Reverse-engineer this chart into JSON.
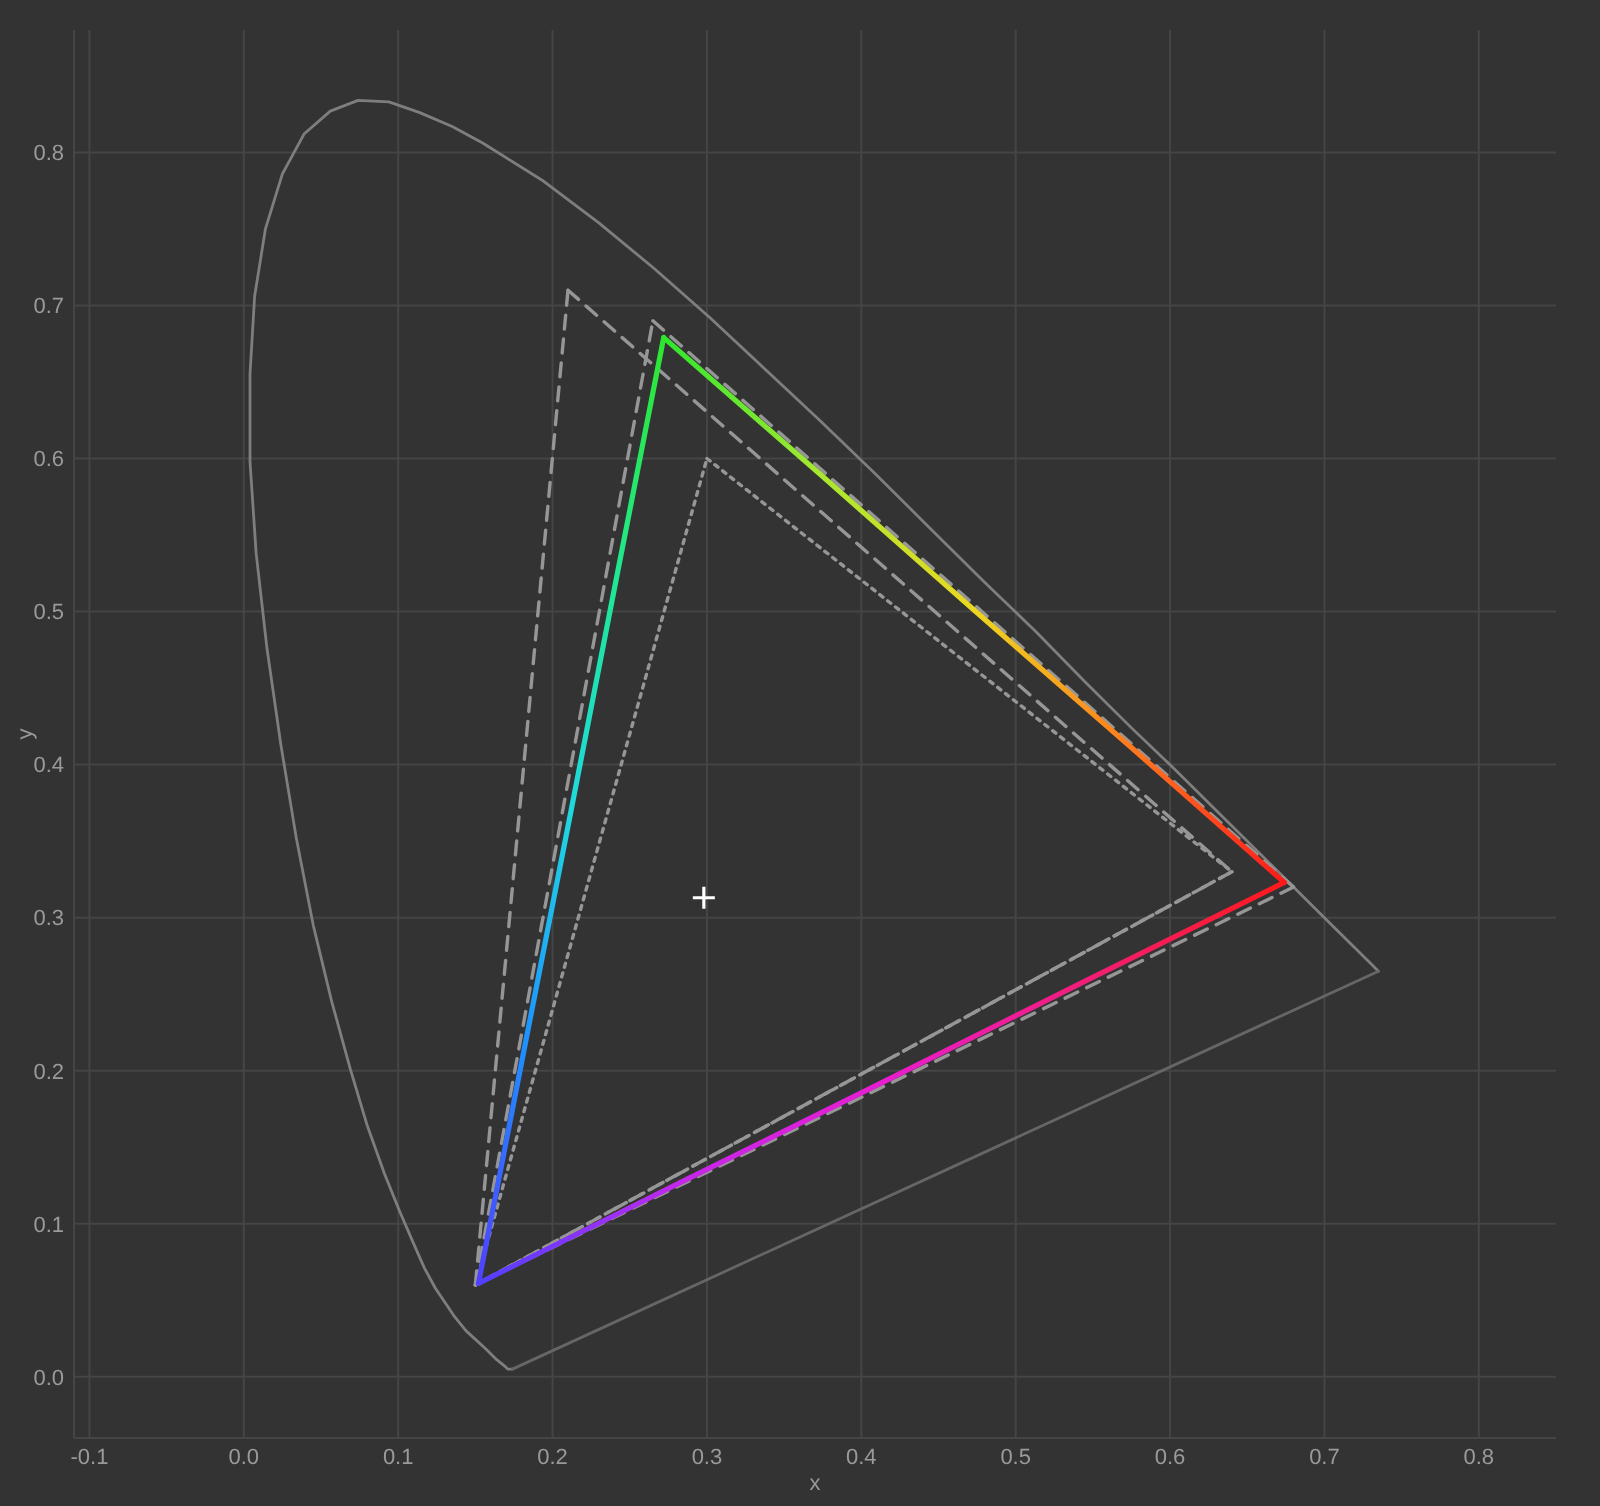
{
  "chart_data": {
    "type": "line",
    "xlabel": "x",
    "ylabel": "y",
    "xlim": [
      -0.11,
      0.85
    ],
    "ylim": [
      -0.04,
      0.88
    ],
    "xticks": [
      -0.1,
      {
        "value": 0,
        "label": "0.0"
      },
      0.1,
      0.2,
      0.3,
      0.4,
      0.5,
      0.6,
      0.7,
      0.8
    ],
    "yticks": [
      {
        "value": 0,
        "label": "0.0"
      },
      0.1,
      0.2,
      0.3,
      0.4,
      0.5,
      0.6,
      0.7,
      0.8
    ],
    "grid": true,
    "series": [
      {
        "color": "#7e7e7e",
        "line_style": "solid",
        "x": [
          0.174,
          0.173,
          0.171,
          0.169,
          0.164,
          0.157,
          0.144,
          0.136,
          0.124,
          0.117,
          0.11,
          0.101,
          0.091,
          0.08,
          0.069,
          0.057,
          0.045,
          0.034,
          0.024,
          0.015,
          0.008,
          0.004,
          0.004,
          0.007,
          0.014,
          0.025,
          0.039,
          0.056,
          0.074,
          0.094,
          0.114,
          0.135,
          0.155,
          0.193,
          0.23,
          0.266,
          0.302,
          0.337,
          0.373,
          0.409,
          0.444,
          0.479,
          0.513,
          0.545,
          0.575,
          0.603,
          0.627,
          0.666,
          0.692,
          0.708,
          0.719,
          0.726,
          0.73,
          0.733,
          0.735
        ],
        "values": [
          0.005,
          0.005,
          0.005,
          0.007,
          0.011,
          0.018,
          0.03,
          0.04,
          0.058,
          0.071,
          0.087,
          0.108,
          0.133,
          0.164,
          0.201,
          0.245,
          0.295,
          0.352,
          0.413,
          0.476,
          0.538,
          0.598,
          0.655,
          0.706,
          0.75,
          0.786,
          0.812,
          0.827,
          0.834,
          0.833,
          0.826,
          0.817,
          0.806,
          0.782,
          0.754,
          0.724,
          0.692,
          0.659,
          0.625,
          0.59,
          0.555,
          0.52,
          0.487,
          0.454,
          0.424,
          0.397,
          0.373,
          0.334,
          0.308,
          0.292,
          0.281,
          0.274,
          0.27,
          0.267,
          0.265
        ]
      },
      {
        "color": "#666666",
        "line_style": "solid",
        "x": [
          0.735,
          0.174
        ],
        "values": [
          0.265,
          0.005
        ]
      },
      {
        "color": "#969696",
        "line_style": "dashed",
        "x": [
          0.21,
          0.64
        ],
        "values": [
          0.71,
          0.33
        ]
      },
      {
        "color": "#969696",
        "line_style": "dashed",
        "x": [
          0.64,
          0.15
        ],
        "values": [
          0.33,
          0.06
        ]
      },
      {
        "color": "#969696",
        "line_style": "dashed",
        "x": [
          0.15,
          0.21
        ],
        "values": [
          0.06,
          0.71
        ]
      },
      {
        "color": "#969696",
        "line_style": "dashed",
        "x": [
          0.265,
          0.68
        ],
        "values": [
          0.69,
          0.32
        ]
      },
      {
        "color": "#969696",
        "line_style": "dashed",
        "x": [
          0.68,
          0.15
        ],
        "values": [
          0.32,
          0.06
        ]
      },
      {
        "color": "#969696",
        "line_style": "dashed",
        "x": [
          0.15,
          0.265
        ],
        "values": [
          0.06,
          0.69
        ]
      },
      {
        "color": "#969696",
        "line_style": "dotted",
        "x": [
          0.3,
          0.64
        ],
        "values": [
          0.6,
          0.33
        ]
      },
      {
        "color": "#969696",
        "line_style": "dotted",
        "x": [
          0.64,
          0.15
        ],
        "values": [
          0.33,
          0.06
        ]
      },
      {
        "color": "#969696",
        "line_style": "dotted",
        "x": [
          0.15,
          0.3
        ],
        "values": [
          0.06,
          0.6
        ]
      },
      {
        "line_style": "solid",
        "colors": [
          "#2ee62e",
          "#a8e830",
          "#ecd820",
          "#ff7a1e",
          "#ff1a1a"
        ],
        "x": [
          0.272,
          0.373,
          0.473,
          0.574,
          0.674
        ],
        "values": [
          0.679,
          0.59,
          0.501,
          0.412,
          0.323
        ]
      },
      {
        "line_style": "solid",
        "colors": [
          "#ff1a1a",
          "#f01e78",
          "#e61ed2",
          "#c428e8",
          "#5040ff"
        ],
        "x": [
          0.674,
          0.544,
          0.413,
          0.283,
          0.152
        ],
        "values": [
          0.323,
          0.258,
          0.192,
          0.127,
          0.061
        ]
      },
      {
        "line_style": "solid",
        "colors": [
          "#5040ff",
          "#1e90ff",
          "#20d8e0",
          "#20e890",
          "#2ee62e"
        ],
        "x": [
          0.152,
          0.182,
          0.212,
          0.242,
          0.272
        ],
        "values": [
          0.061,
          0.216,
          0.37,
          0.525,
          0.679
        ]
      },
      {
        "type": "scatter",
        "color": "#ffffff",
        "marker": "cross",
        "x": [
          0.298
        ],
        "values": [
          0.313
        ]
      }
    ]
  }
}
